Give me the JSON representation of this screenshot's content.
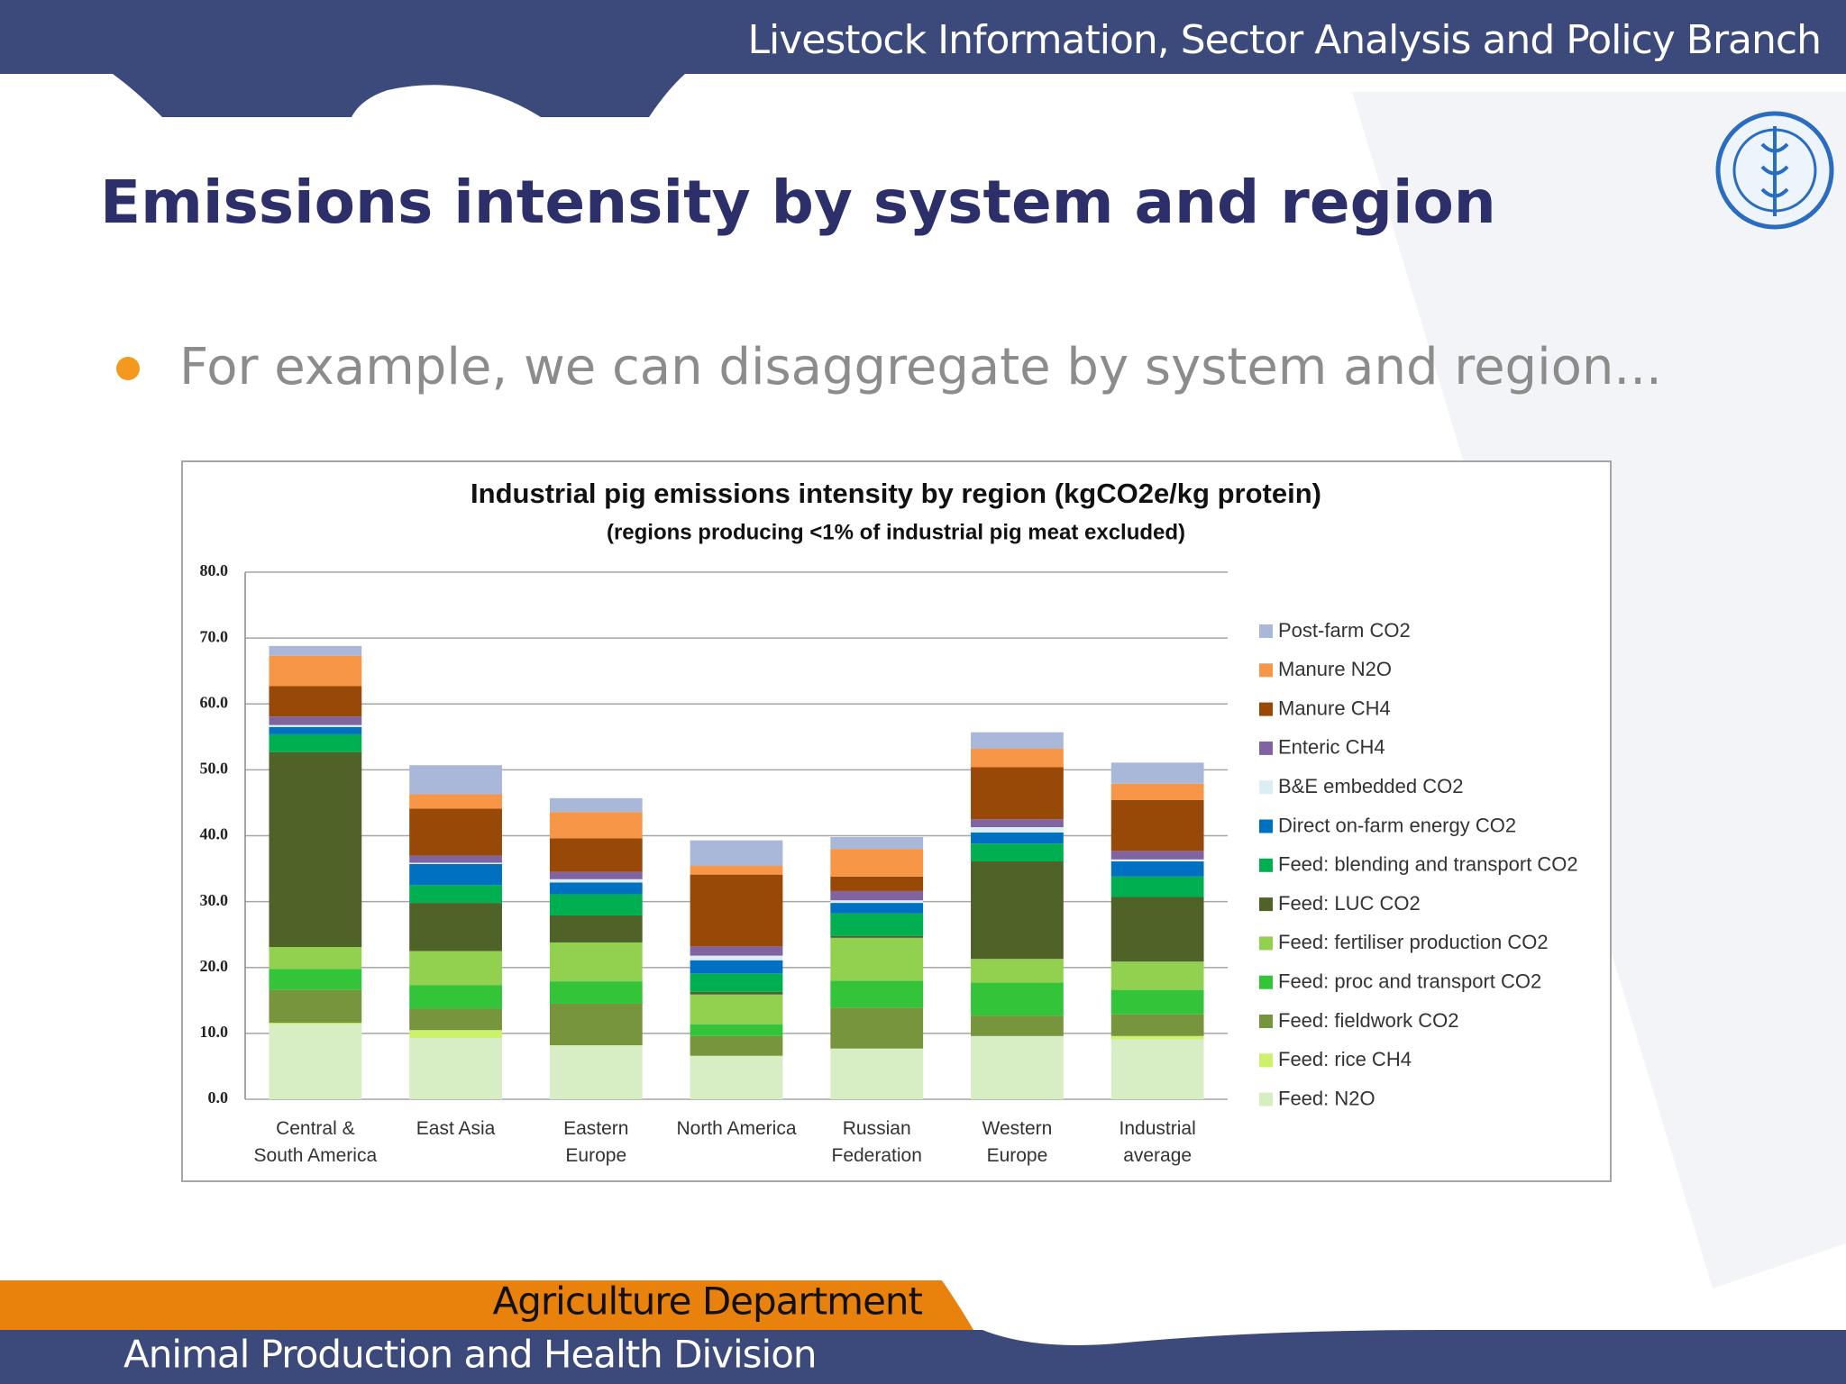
{
  "header": {
    "text": "Livestock Information, Sector Analysis and Policy Branch"
  },
  "title": "Emissions intensity by system and region",
  "bullet": "For example, we can disaggregate by system and region...",
  "chart_data": {
    "type": "stacked_bar",
    "title": "Industrial pig emissions intensity by region (kgCO2e/kg protein)",
    "subtitle": "(regions producing <1% of industrial pig meat excluded)",
    "categories": [
      "Central & South America",
      "East Asia",
      "Eastern Europe",
      "North America",
      "Russian Federation",
      "Western Europe",
      "Industrial average"
    ],
    "ylim": [
      0,
      80
    ],
    "yticks": [
      {
        "value": 0,
        "label": "0.0"
      },
      {
        "value": 10,
        "label": "10.0"
      },
      {
        "value": 20,
        "label": "20.0"
      },
      {
        "value": 30,
        "label": "30.0"
      },
      {
        "value": 40,
        "label": "40.0"
      },
      {
        "value": 50,
        "label": "50.0"
      },
      {
        "value": 60,
        "label": "60.0"
      },
      {
        "value": 70,
        "label": "70.0"
      },
      {
        "value": 80,
        "label": "80.0"
      }
    ],
    "grid": true,
    "legend": "right",
    "series": [
      {
        "name": "Feed: N2O",
        "color": "#d7eec4",
        "values": [
          11.4,
          9.3,
          8.2,
          6.6,
          7.7,
          9.6,
          9.1
        ]
      },
      {
        "name": "Feed: rice CH4",
        "color": "#ccf26a",
        "values": [
          0.2,
          1.2,
          0,
          0,
          0,
          0,
          0.5
        ]
      },
      {
        "name": "Feed: fieldwork CO2",
        "color": "#77953d",
        "values": [
          5.0,
          3.3,
          6.3,
          3.0,
          6.2,
          3.1,
          3.3
        ]
      },
      {
        "name": "Feed: proc and transport CO2",
        "color": "#33c43a",
        "values": [
          3.2,
          3.5,
          3.4,
          1.8,
          4.1,
          5.0,
          3.7
        ]
      },
      {
        "name": "Feed: fertiliser production CO2",
        "color": "#92d050",
        "values": [
          3.3,
          5.2,
          5.9,
          4.5,
          6.5,
          3.6,
          4.3
        ]
      },
      {
        "name": "Feed: LUC CO2",
        "color": "#4f6228",
        "values": [
          29.6,
          7.3,
          4.1,
          0.4,
          0.3,
          14.8,
          9.8
        ]
      },
      {
        "name": "Feed: blending and transport CO2",
        "color": "#00b050",
        "values": [
          2.7,
          2.7,
          3.2,
          2.8,
          3.4,
          2.7,
          3.1
        ]
      },
      {
        "name": "Direct on-farm energy CO2",
        "color": "#0070c0",
        "values": [
          1.1,
          3.2,
          1.8,
          2.0,
          1.6,
          1.7,
          2.3
        ]
      },
      {
        "name": "B&E embedded CO2",
        "color": "#dbeef4",
        "values": [
          0.3,
          0.2,
          0.5,
          0.7,
          0.4,
          0.8,
          0.3
        ]
      },
      {
        "name": "Enteric CH4",
        "color": "#8064a2",
        "values": [
          1.3,
          1.1,
          1.1,
          1.4,
          1.4,
          1.2,
          1.3
        ]
      },
      {
        "name": "Manure CH4",
        "color": "#984807",
        "values": [
          4.6,
          7.1,
          5.1,
          10.9,
          2.2,
          7.9,
          7.7
        ]
      },
      {
        "name": "Manure N2O",
        "color": "#f79646",
        "values": [
          4.6,
          2.2,
          4.0,
          1.4,
          4.2,
          2.8,
          2.5
        ]
      },
      {
        "name": "Post-farm CO2",
        "color": "#a9b8d9",
        "values": [
          1.5,
          4.4,
          2.1,
          3.8,
          1.8,
          2.5,
          3.2
        ]
      }
    ]
  },
  "footer": {
    "department": "Agriculture Department",
    "division": "Animal Production and Health Division"
  }
}
